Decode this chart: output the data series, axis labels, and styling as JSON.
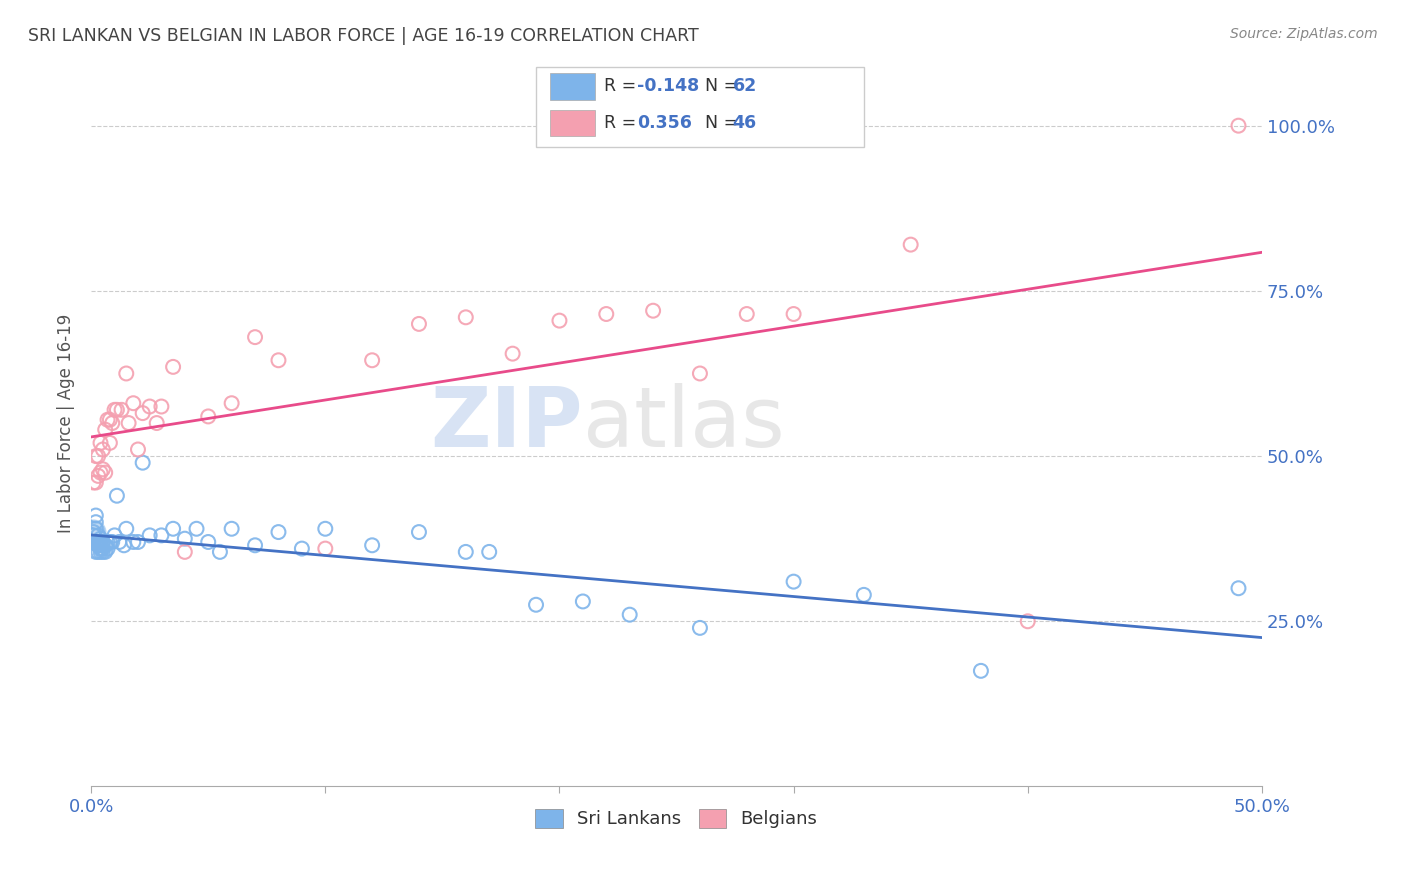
{
  "title": "SRI LANKAN VS BELGIAN IN LABOR FORCE | AGE 16-19 CORRELATION CHART",
  "source": "Source: ZipAtlas.com",
  "ylabel": "In Labor Force | Age 16-19",
  "xlim": [
    0.0,
    0.5
  ],
  "ylim": [
    0.0,
    1.1
  ],
  "watermark_zip": "ZIP",
  "watermark_atlas": "atlas",
  "sri_lankan_color": "#7EB4EA",
  "belgian_color": "#F4A0B0",
  "sri_lankan_line_color": "#4472C4",
  "belgian_line_color": "#E84B8A",
  "sri_lankan_R": -0.148,
  "sri_lankan_N": 62,
  "belgian_R": 0.356,
  "belgian_N": 46,
  "sri_lankans_x": [
    0.001,
    0.001,
    0.001,
    0.002,
    0.002,
    0.002,
    0.002,
    0.002,
    0.003,
    0.003,
    0.003,
    0.003,
    0.003,
    0.003,
    0.004,
    0.004,
    0.004,
    0.004,
    0.004,
    0.004,
    0.005,
    0.005,
    0.005,
    0.005,
    0.006,
    0.006,
    0.007,
    0.007,
    0.008,
    0.009,
    0.01,
    0.011,
    0.012,
    0.014,
    0.015,
    0.018,
    0.02,
    0.022,
    0.025,
    0.03,
    0.035,
    0.04,
    0.045,
    0.05,
    0.055,
    0.06,
    0.07,
    0.08,
    0.09,
    0.1,
    0.12,
    0.14,
    0.16,
    0.17,
    0.19,
    0.21,
    0.23,
    0.26,
    0.3,
    0.33,
    0.38,
    0.49
  ],
  "sri_lankans_y": [
    0.385,
    0.37,
    0.38,
    0.4,
    0.37,
    0.355,
    0.39,
    0.41,
    0.365,
    0.37,
    0.365,
    0.355,
    0.38,
    0.37,
    0.365,
    0.375,
    0.36,
    0.37,
    0.355,
    0.365,
    0.365,
    0.355,
    0.37,
    0.36,
    0.365,
    0.355,
    0.37,
    0.36,
    0.37,
    0.37,
    0.38,
    0.44,
    0.37,
    0.365,
    0.39,
    0.37,
    0.37,
    0.49,
    0.38,
    0.38,
    0.39,
    0.375,
    0.39,
    0.37,
    0.355,
    0.39,
    0.365,
    0.385,
    0.36,
    0.39,
    0.365,
    0.385,
    0.355,
    0.355,
    0.275,
    0.28,
    0.26,
    0.24,
    0.31,
    0.29,
    0.175,
    0.3
  ],
  "belgians_x": [
    0.001,
    0.002,
    0.002,
    0.003,
    0.003,
    0.004,
    0.004,
    0.005,
    0.005,
    0.006,
    0.006,
    0.007,
    0.008,
    0.008,
    0.009,
    0.01,
    0.011,
    0.013,
    0.015,
    0.016,
    0.018,
    0.02,
    0.022,
    0.025,
    0.028,
    0.03,
    0.035,
    0.04,
    0.05,
    0.06,
    0.07,
    0.08,
    0.1,
    0.12,
    0.14,
    0.16,
    0.18,
    0.2,
    0.22,
    0.24,
    0.26,
    0.28,
    0.3,
    0.35,
    0.4,
    0.49
  ],
  "belgians_y": [
    0.46,
    0.5,
    0.46,
    0.5,
    0.47,
    0.52,
    0.475,
    0.48,
    0.51,
    0.475,
    0.54,
    0.555,
    0.555,
    0.52,
    0.55,
    0.57,
    0.57,
    0.57,
    0.625,
    0.55,
    0.58,
    0.51,
    0.565,
    0.575,
    0.55,
    0.575,
    0.635,
    0.355,
    0.56,
    0.58,
    0.68,
    0.645,
    0.36,
    0.645,
    0.7,
    0.71,
    0.655,
    0.705,
    0.715,
    0.72,
    0.625,
    0.715,
    0.715,
    0.82,
    0.25,
    1.0
  ],
  "background_color": "#FFFFFF",
  "grid_color": "#CCCCCC",
  "title_color": "#444444",
  "axis_label_color": "#555555",
  "tick_color_blue": "#4472C4",
  "tick_color_gray": "#666666"
}
